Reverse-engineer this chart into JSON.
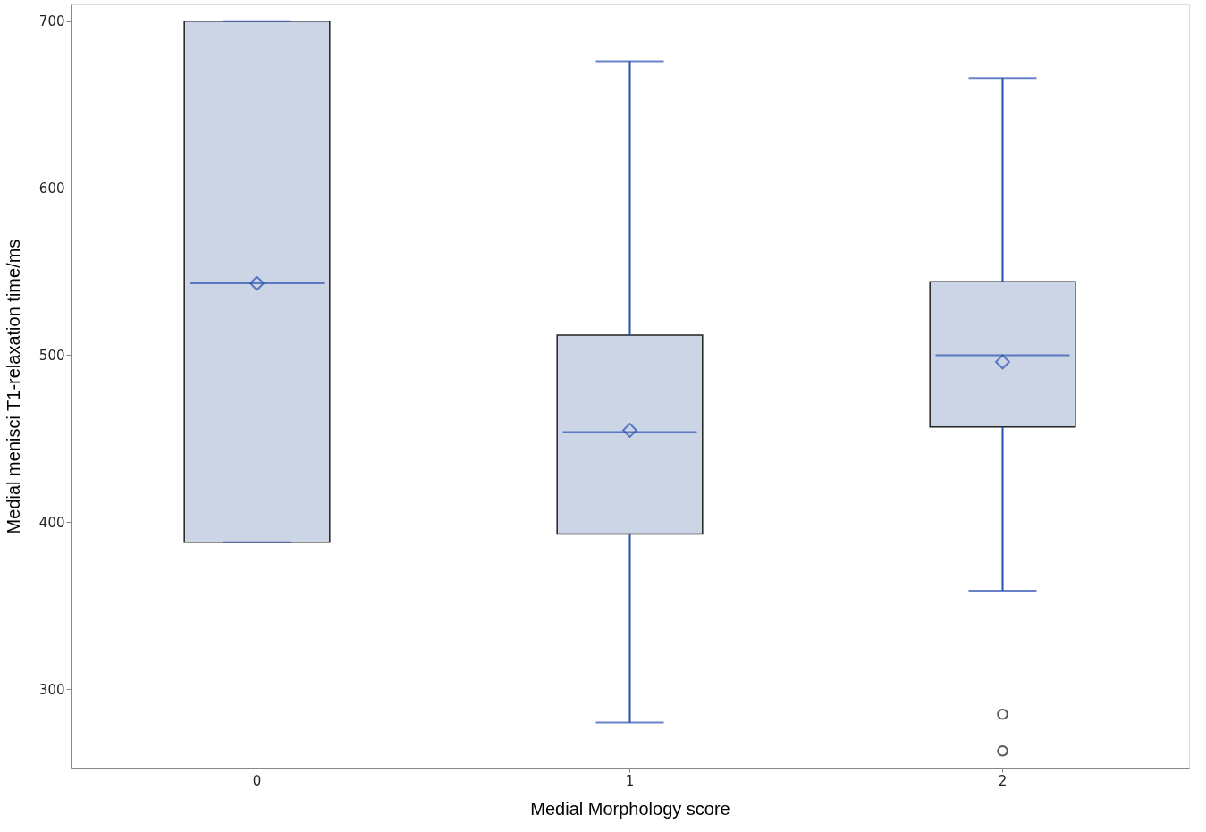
{
  "chart_data": {
    "type": "box",
    "xlabel": "Medial Morphology score",
    "ylabel": "Medial menisci T1-relaxation time/ms",
    "categories": [
      "0",
      "1",
      "2"
    ],
    "boxes": [
      {
        "low": 388,
        "q1": 388,
        "median": 543,
        "q3": 700,
        "high": 700,
        "mean": 543
      },
      {
        "low": 280,
        "q1": 393,
        "median": 454,
        "q3": 512,
        "high": 676,
        "mean": 455
      },
      {
        "low": 359,
        "q1": 457,
        "median": 500,
        "q3": 544,
        "high": 666,
        "mean": 496,
        "outliers": [
          285,
          263
        ]
      }
    ],
    "color": "#cbd5e5",
    "ylim": [
      253,
      710
    ],
    "yticks": [
      300,
      400,
      500,
      600,
      700
    ],
    "grid": false
  }
}
